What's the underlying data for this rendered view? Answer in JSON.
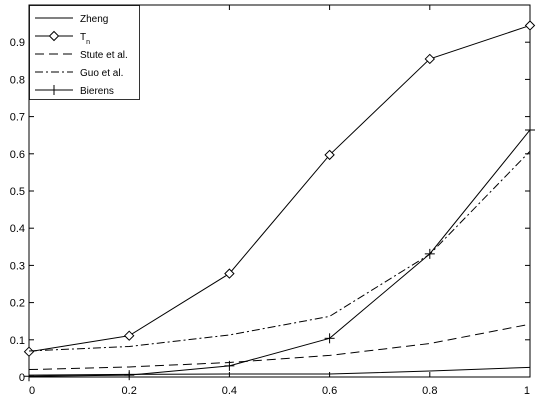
{
  "chart_data": {
    "type": "line",
    "title": "",
    "xlabel": "",
    "ylabel": "",
    "xlim": [
      0,
      1
    ],
    "ylim": [
      0,
      1
    ],
    "xticks": [
      0,
      0.2,
      0.4,
      0.6,
      0.8,
      1
    ],
    "xtick_labels": [
      "0",
      "0.2",
      "0.4",
      "0.6",
      "0.8",
      "1"
    ],
    "yticks": [
      0,
      0.1,
      0.2,
      0.3,
      0.4,
      0.5,
      0.6,
      0.7,
      0.8,
      0.9
    ],
    "ytick_labels": [
      "0",
      "0.1",
      "0.2",
      "0.3",
      "0.4",
      "0.5",
      "0.6",
      "0.7",
      "0.8",
      "0.9"
    ],
    "grid": false,
    "legend_position": "top-left",
    "x": [
      0,
      0.2,
      0.4,
      0.6,
      0.8,
      1
    ],
    "series": [
      {
        "name": "Zheng",
        "line": "solid",
        "marker": "none",
        "values": [
          0.005,
          0.007,
          0.008,
          0.008,
          0.016,
          0.026
        ]
      },
      {
        "name": "T",
        "subscript": "n",
        "line": "solid",
        "marker": "diamond",
        "values": [
          0.068,
          0.111,
          0.278,
          0.597,
          0.855,
          0.945
        ]
      },
      {
        "name": "Stute et al.",
        "line": "dashed",
        "marker": "none",
        "values": [
          0.02,
          0.027,
          0.039,
          0.058,
          0.09,
          0.142
        ]
      },
      {
        "name": "Guo et al.",
        "line": "dashdot",
        "marker": "none",
        "values": [
          0.07,
          0.082,
          0.113,
          0.163,
          0.33,
          0.607
        ]
      },
      {
        "name": "Bierens",
        "line": "solid",
        "marker": "plus",
        "values": [
          0.002,
          0.005,
          0.03,
          0.104,
          0.331,
          0.664
        ]
      }
    ]
  }
}
